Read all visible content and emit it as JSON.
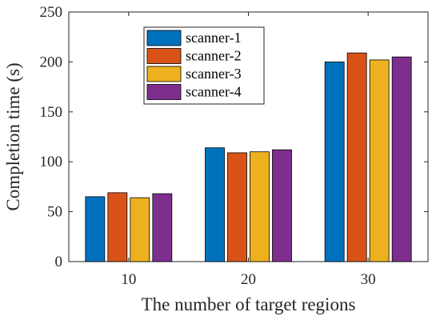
{
  "chart_data": {
    "type": "bar",
    "title": "",
    "xlabel": "The number of target regions",
    "ylabel": "Completion time (s)",
    "categories": [
      "10",
      "20",
      "30"
    ],
    "ylim": [
      0,
      250
    ],
    "yticks": [
      "0",
      "50",
      "100",
      "150",
      "200",
      "250"
    ],
    "grid": false,
    "legend_position": "top-left",
    "series": [
      {
        "name": "scanner-1",
        "color": "#0072BD",
        "values": [
          65,
          114,
          200
        ]
      },
      {
        "name": "scanner-2",
        "color": "#D95319",
        "values": [
          69,
          109,
          209
        ]
      },
      {
        "name": "scanner-3",
        "color": "#EDB120",
        "values": [
          64,
          110,
          202
        ]
      },
      {
        "name": "scanner-4",
        "color": "#7E2F8E",
        "values": [
          68,
          112,
          205
        ]
      }
    ]
  }
}
